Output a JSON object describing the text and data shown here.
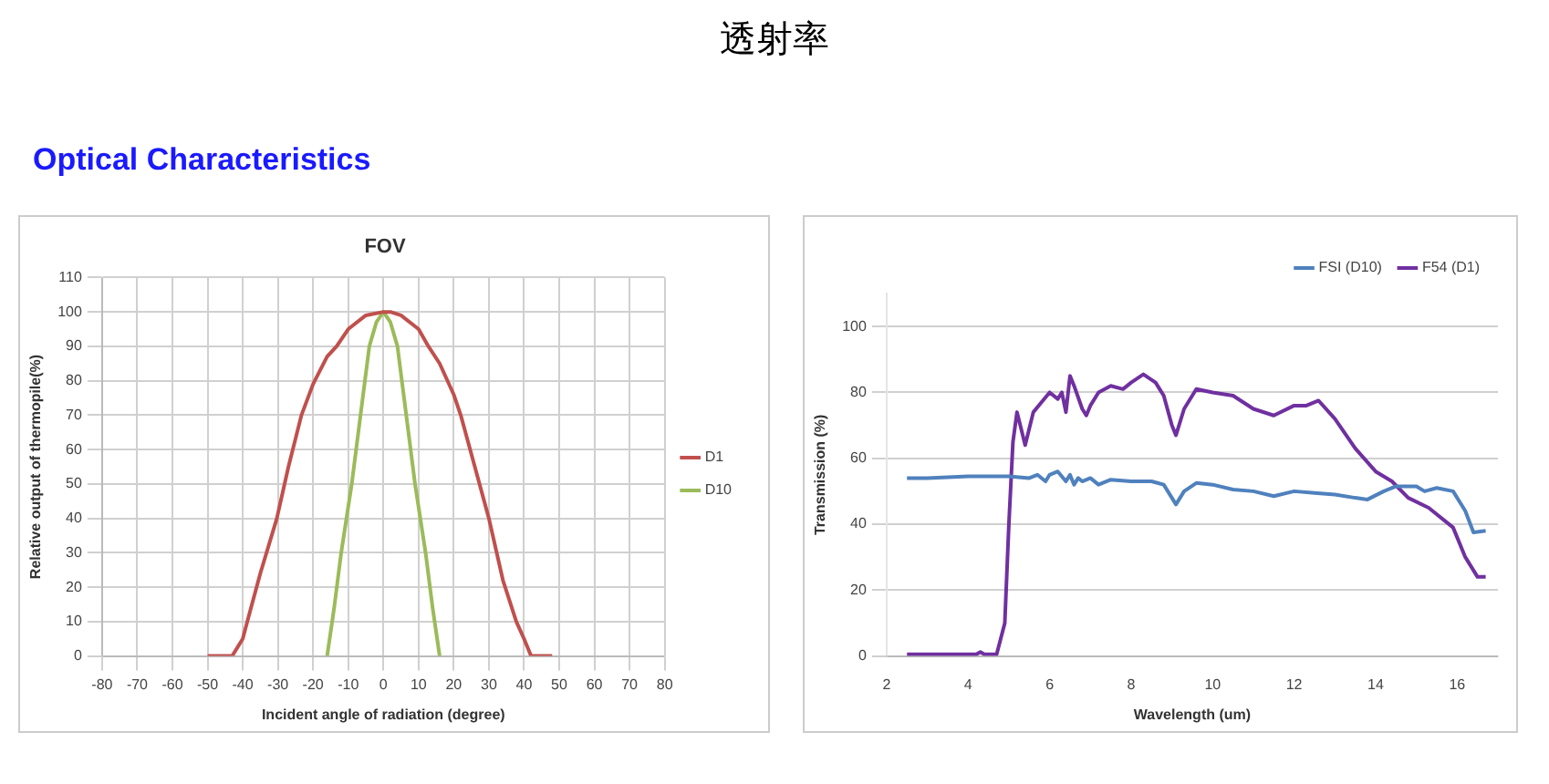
{
  "chart_data": [
    {
      "type": "other",
      "title": "透射率",
      "subtitle": "Optical Characteristics"
    },
    {
      "type": "line",
      "title": "FOV",
      "xlabel": "Incident angle of radiation (degree)",
      "ylabel": "Relative output of thermopile(%)",
      "xlim": [
        -80,
        80
      ],
      "xticks": [
        -80,
        -70,
        -60,
        -50,
        -40,
        -30,
        -20,
        -10,
        0,
        10,
        20,
        30,
        40,
        50,
        60,
        70,
        80
      ],
      "ylim": [
        0,
        110
      ],
      "yticks": [
        0,
        10,
        20,
        30,
        40,
        50,
        60,
        70,
        80,
        90,
        100,
        110
      ],
      "grid": true,
      "legend": "right",
      "marker": "none",
      "series": [
        {
          "name": "D1",
          "color": "#c0504d",
          "x": [
            -50,
            -43,
            -40,
            -38.7,
            -35,
            -30.3,
            -27,
            -23.3,
            -20,
            -16,
            -13.3,
            -10,
            -5,
            0,
            2,
            5,
            10,
            12.8,
            16,
            20,
            22,
            26,
            30,
            34,
            37.8,
            40,
            42,
            48
          ],
          "values": [
            0,
            0,
            5,
            10,
            24,
            40,
            55,
            70,
            79,
            87,
            90,
            95,
            99,
            100,
            100,
            99,
            95,
            90,
            85,
            76,
            70,
            55,
            40,
            22,
            10,
            5,
            0,
            0
          ]
        },
        {
          "name": "D10",
          "color": "#9bbb59",
          "x": [
            -16,
            -14,
            -12,
            -9,
            -6,
            -4,
            -2,
            0,
            2,
            4,
            6,
            9,
            12,
            14,
            16
          ],
          "values": [
            0,
            14,
            30,
            50,
            74,
            90,
            97,
            100,
            97,
            90,
            74,
            50,
            30,
            14,
            0
          ]
        }
      ]
    },
    {
      "type": "line",
      "xlabel": "Wavelength (um)",
      "ylabel": "Transmission (%)",
      "xlim": [
        2,
        17
      ],
      "xticks": [
        2,
        4,
        6,
        8,
        10,
        12,
        14,
        16
      ],
      "ylim": [
        0,
        110
      ],
      "yticks": [
        0,
        20,
        40,
        60,
        80,
        100
      ],
      "grid": "y",
      "legend": "top right",
      "marker": "none",
      "series": [
        {
          "name": "FSI (D10)",
          "color": "#4f81bd",
          "x": [
            2.5,
            3,
            4,
            5,
            5.5,
            5.7,
            5.9,
            6.0,
            6.2,
            6.4,
            6.5,
            6.6,
            6.7,
            6.8,
            7.0,
            7.2,
            7.5,
            8,
            8.5,
            8.8,
            9.0,
            9.1,
            9.3,
            9.6,
            10,
            10.5,
            11,
            11.5,
            12,
            12.5,
            13,
            13.5,
            13.8,
            14.2,
            14.5,
            15,
            15.2,
            15.5,
            15.9,
            16.2,
            16.4,
            16.7
          ],
          "values": [
            54,
            54,
            54.5,
            54.5,
            54,
            55,
            53,
            55,
            56,
            53,
            55,
            52,
            54,
            53,
            54,
            52,
            53.5,
            53,
            53,
            52,
            48,
            46,
            50,
            52.5,
            52,
            50.5,
            50,
            48.5,
            50,
            49.5,
            49,
            48,
            47.5,
            50,
            51.5,
            51.5,
            50,
            51,
            50,
            44,
            37.5,
            38
          ]
        },
        {
          "name": "F54 (D1)",
          "color": "#7030a0",
          "x": [
            2.5,
            4.2,
            4.3,
            4.4,
            4.7,
            4.9,
            5.0,
            5.1,
            5.2,
            5.4,
            5.6,
            5.8,
            6.0,
            6.2,
            6.3,
            6.4,
            6.5,
            6.6,
            6.8,
            6.9,
            7.0,
            7.2,
            7.5,
            7.8,
            8.0,
            8.3,
            8.6,
            8.8,
            9.0,
            9.1,
            9.3,
            9.6,
            10,
            10.5,
            11,
            11.5,
            12,
            12.3,
            12.6,
            13,
            13.5,
            14,
            14.4,
            14.8,
            15.3,
            15.9,
            16.2,
            16.5,
            16.7
          ],
          "values": [
            0.5,
            0.5,
            1.2,
            0.5,
            0.5,
            10,
            40,
            65,
            74,
            64,
            74,
            77,
            80,
            78,
            80,
            74,
            85,
            82,
            75,
            73,
            76,
            80,
            82,
            81,
            83,
            85.5,
            83,
            79,
            70,
            67,
            75,
            81,
            80,
            79,
            75,
            73,
            76,
            76,
            77.5,
            72,
            63,
            56,
            53,
            48,
            45,
            39,
            30,
            24,
            24
          ]
        }
      ]
    }
  ]
}
